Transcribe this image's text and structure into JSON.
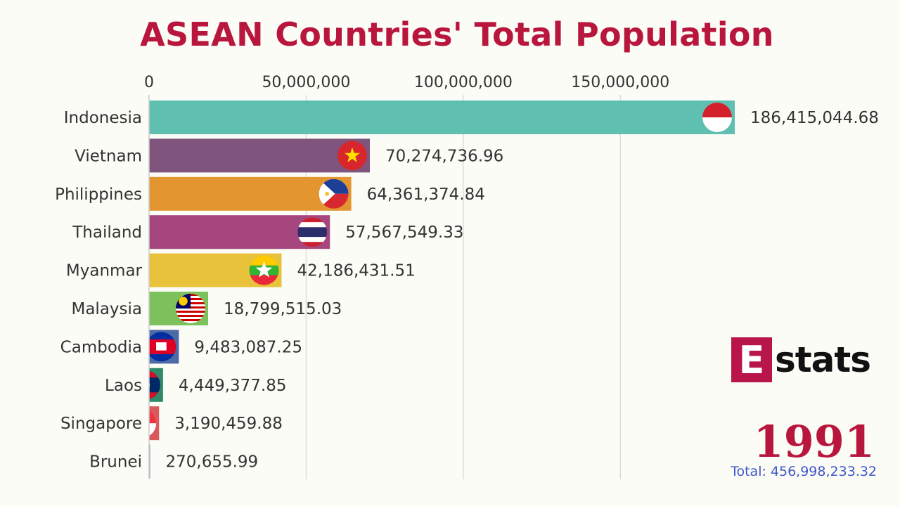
{
  "title": "ASEAN Countries' Total Population",
  "year": "1991",
  "total_label": "Total: 456,998,233.32",
  "logo": {
    "letter": "E",
    "text": "stats"
  },
  "chart_data": {
    "type": "bar",
    "orientation": "horizontal",
    "xlim": [
      0,
      186415044.68
    ],
    "ticks": [
      0,
      50000000,
      100000000,
      150000000
    ],
    "tick_labels": [
      "0",
      "50,000,000",
      "100,000,000",
      "150,000,000"
    ],
    "grid": true,
    "categories": [
      "Indonesia",
      "Vietnam",
      "Philippines",
      "Thailand",
      "Myanmar",
      "Malaysia",
      "Cambodia",
      "Laos",
      "Singapore",
      "Brunei"
    ],
    "values": [
      186415044.68,
      70274736.96,
      64361374.84,
      57567549.33,
      42186431.51,
      18799515.03,
      9483087.25,
      4449377.85,
      3190459.88,
      270655.99
    ],
    "value_labels": [
      "186,415,044.68",
      "70,274,736.96",
      "64,361,374.84",
      "57,567,549.33",
      "42,186,431.51",
      "18,799,515.03",
      "9,483,087.25",
      "4,449,377.85",
      "3,190,459.88",
      "270,655.99"
    ],
    "colors": [
      "#5fbfb1",
      "#80557d",
      "#e3962f",
      "#a5477e",
      "#e9c23b",
      "#7cc15c",
      "#4b6aa6",
      "#2e8a6a",
      "#d9585e",
      "#6f8fb4"
    ],
    "flag_icons": [
      "indonesia-flag-icon",
      "vietnam-flag-icon",
      "philippines-flag-icon",
      "thailand-flag-icon",
      "myanmar-flag-icon",
      "malaysia-flag-icon",
      "cambodia-flag-icon",
      "laos-flag-icon",
      "singapore-flag-icon",
      "brunei-flag-icon"
    ]
  }
}
